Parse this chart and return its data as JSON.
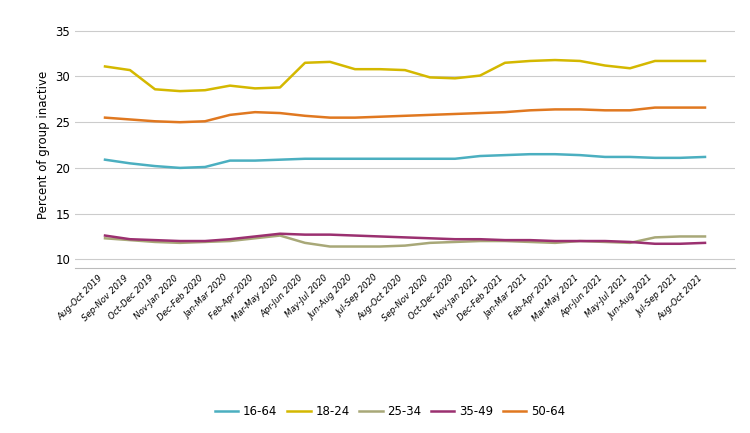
{
  "title": "",
  "ylabel": "Percent of group inactive",
  "xlabel": "",
  "ylim": [
    9,
    36
  ],
  "yticks": [
    10,
    15,
    20,
    25,
    30,
    35
  ],
  "x_labels": [
    "Aug-Oct 2019",
    "Sep-Nov 2019",
    "Oct-Dec 2019",
    "Nov-Jan 2020",
    "Dec-Feb 2020",
    "Jan-Mar 2020",
    "Feb-Apr 2020",
    "Mar-May 2020",
    "Apr-Jun 2020",
    "May-Jul 2020",
    "Jun-Aug 2020",
    "Jul-Sep 2020",
    "Aug-Oct 2020",
    "Sep-Nov 2020",
    "Oct-Dec 2020",
    "Nov-Jan 2021",
    "Dec-Feb 2021",
    "Jan-Mar 2021",
    "Feb-Apr 2021",
    "Mar-May 2021",
    "Apr-Jun 2021",
    "May-Jul 2021",
    "Jun-Aug 2021",
    "Jul-Sep 2021",
    "Aug-Oct 2021"
  ],
  "series": {
    "16-64": {
      "color": "#4BAFC0",
      "values": [
        20.9,
        20.5,
        20.2,
        20.0,
        20.1,
        20.8,
        20.8,
        20.9,
        21.0,
        21.0,
        21.0,
        21.0,
        21.0,
        21.0,
        21.0,
        21.3,
        21.4,
        21.5,
        21.5,
        21.4,
        21.2,
        21.2,
        21.1,
        21.1,
        21.2
      ]
    },
    "18-24": {
      "color": "#D4B800",
      "values": [
        31.1,
        30.7,
        28.6,
        28.4,
        28.5,
        29.0,
        28.7,
        28.8,
        31.5,
        31.6,
        30.8,
        30.8,
        30.7,
        29.9,
        29.8,
        30.1,
        31.5,
        31.7,
        31.8,
        31.7,
        31.2,
        30.9,
        31.7,
        31.7,
        31.7
      ]
    },
    "25-34": {
      "color": "#A8A878",
      "values": [
        12.3,
        12.1,
        11.9,
        11.8,
        11.9,
        12.0,
        12.3,
        12.6,
        11.8,
        11.4,
        11.4,
        11.4,
        11.5,
        11.8,
        11.9,
        12.0,
        12.0,
        11.9,
        11.8,
        12.0,
        11.9,
        11.8,
        12.4,
        12.5,
        12.5
      ]
    },
    "35-49": {
      "color": "#9B3070",
      "values": [
        12.6,
        12.2,
        12.1,
        12.0,
        12.0,
        12.2,
        12.5,
        12.8,
        12.7,
        12.7,
        12.6,
        12.5,
        12.4,
        12.3,
        12.2,
        12.2,
        12.1,
        12.1,
        12.0,
        12.0,
        12.0,
        11.9,
        11.7,
        11.7,
        11.8
      ]
    },
    "50-64": {
      "color": "#E07820",
      "values": [
        25.5,
        25.3,
        25.1,
        25.0,
        25.1,
        25.8,
        26.1,
        26.0,
        25.7,
        25.5,
        25.5,
        25.6,
        25.7,
        25.8,
        25.9,
        26.0,
        26.1,
        26.3,
        26.4,
        26.4,
        26.3,
        26.3,
        26.6,
        26.6,
        26.6
      ]
    }
  },
  "background_color": "#FFFFFF",
  "grid_color": "#CCCCCC",
  "legend_order": [
    "16-64",
    "18-24",
    "25-34",
    "35-49",
    "50-64"
  ]
}
